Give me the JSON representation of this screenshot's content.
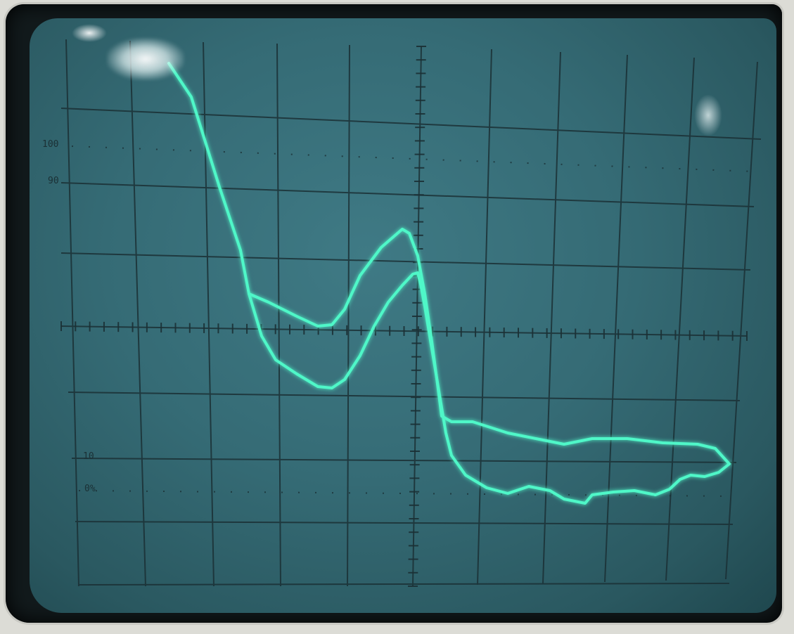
{
  "graticule": {
    "labels": {
      "top_100": "100",
      "top_90": "90",
      "bottom_10": "10",
      "bottom_0": "0%"
    }
  },
  "colors": {
    "trace": "#4ff7c8",
    "trace_glow": "#2fd8a8",
    "grid": "#1b3035",
    "screen": "#356b75",
    "bezel": "#121a1c"
  },
  "traces": {
    "count": 2
  }
}
